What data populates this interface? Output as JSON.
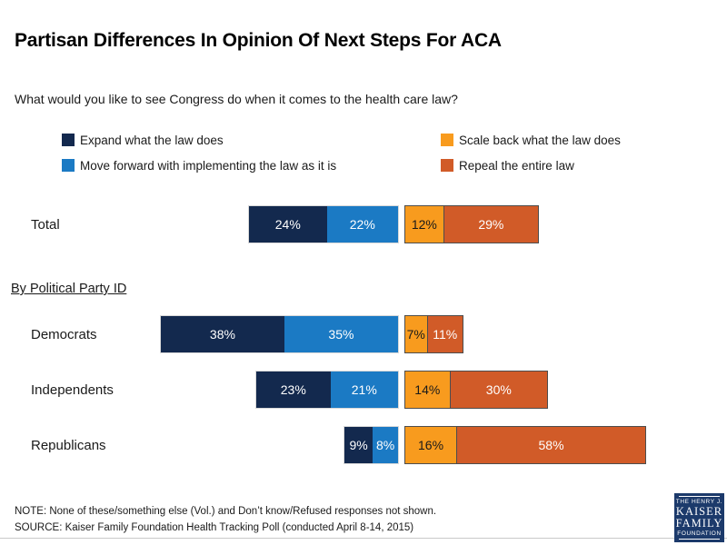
{
  "chart_data": {
    "type": "bar",
    "variant": "horizontal-diverging-stacked",
    "title": "Partisan Differences In Opinion Of Next Steps For ACA",
    "question": "What would you like to see Congress do when it comes to the health care law?",
    "group_section_label": "By Political Party ID",
    "categories": [
      "Total",
      "Democrats",
      "Independents",
      "Republicans"
    ],
    "series": [
      {
        "key": "expand",
        "name": "Expand what the law does",
        "color": "#13294e",
        "text_color": "#ffffff",
        "side": "left",
        "values": [
          24,
          38,
          23,
          9
        ]
      },
      {
        "key": "move-forward",
        "name": "Move forward with implementing the law as it is",
        "color": "#1b7ac4",
        "text_color": "#ffffff",
        "side": "left",
        "values": [
          22,
          35,
          21,
          8
        ]
      },
      {
        "key": "scale-back",
        "name": "Scale back what the law does",
        "color": "#f89b1e",
        "text_color": "#1a1a1a",
        "side": "right",
        "values": [
          12,
          7,
          14,
          16
        ]
      },
      {
        "key": "repeal",
        "name": "Repeal the entire law",
        "color": "#d15b28",
        "text_color": "#ffffff",
        "side": "right",
        "values": [
          29,
          11,
          30,
          58
        ]
      }
    ],
    "unit": "%",
    "axis": {
      "hidden": true,
      "range_pct": [
        0,
        100
      ]
    },
    "legend_position": "top-two-columns"
  },
  "footer": {
    "note": "NOTE: None of these/something else (Vol.) and Don’t know/Refused responses not shown.",
    "source": "SOURCE: Kaiser Family Foundation Health Tracking Poll (conducted April 8-14, 2015)"
  },
  "logo": {
    "line1": "THE HENRY J.",
    "line2": "KAISER",
    "line3": "FAMILY",
    "line4": "FOUNDATION"
  }
}
